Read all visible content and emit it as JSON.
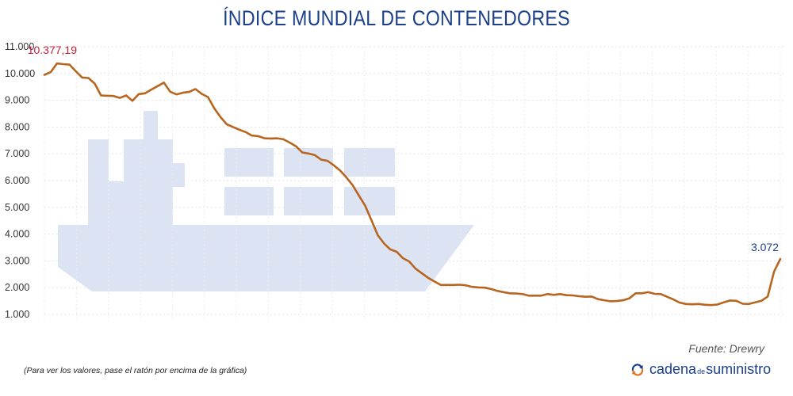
{
  "chart_data": {
    "type": "line",
    "title": "ÍNDICE MUNDIAL DE CONTENEDORES",
    "ylim": [
      1000,
      11000
    ],
    "yticks": [
      1000,
      2000,
      3000,
      4000,
      5000,
      6000,
      7000,
      8000,
      9000,
      10000,
      11000
    ],
    "ytick_labels": [
      "1.000",
      "2.000",
      "3.000",
      "4.000",
      "5.000",
      "6.000",
      "7.000",
      "8.000",
      "9.000",
      "10.000",
      "11.000"
    ],
    "grid": true,
    "line_color": "#b8651f",
    "series": [
      {
        "values": [
          9950,
          10050,
          10377,
          10350,
          10330,
          10080,
          9850,
          9830,
          9620,
          9180,
          9170,
          9160,
          9090,
          9180,
          8980,
          9230,
          9260,
          9400,
          9530,
          9660,
          9320,
          9220,
          9280,
          9310,
          9420,
          9240,
          9120,
          8700,
          8370,
          8100,
          8000,
          7900,
          7810,
          7680,
          7660,
          7580,
          7570,
          7580,
          7540,
          7420,
          7280,
          7050,
          7010,
          6950,
          6780,
          6740,
          6570,
          6380,
          6120,
          5830,
          5440,
          5060,
          4520,
          3960,
          3650,
          3430,
          3340,
          3100,
          2980,
          2710,
          2540,
          2370,
          2230,
          2100,
          2100,
          2100,
          2110,
          2090,
          2030,
          2010,
          2000,
          1950,
          1880,
          1830,
          1790,
          1780,
          1760,
          1700,
          1700,
          1700,
          1760,
          1730,
          1760,
          1720,
          1710,
          1680,
          1660,
          1670,
          1570,
          1530,
          1490,
          1500,
          1530,
          1600,
          1790,
          1790,
          1830,
          1770,
          1760,
          1660,
          1560,
          1440,
          1390,
          1380,
          1390,
          1360,
          1350,
          1370,
          1450,
          1520,
          1510,
          1400,
          1390,
          1450,
          1510,
          1670,
          2600,
          3072
        ]
      }
    ],
    "annotations": {
      "max_label": "10.377,19",
      "last_label": "3.072"
    }
  },
  "ship_color": "#dce3f3",
  "source": "Fuente: Drewry",
  "note": "(Para ver los valores, pase el ratón por encima de la gráfica)",
  "brand": {
    "part1": "cadena",
    "part2": "de",
    "part3": "suministro"
  }
}
